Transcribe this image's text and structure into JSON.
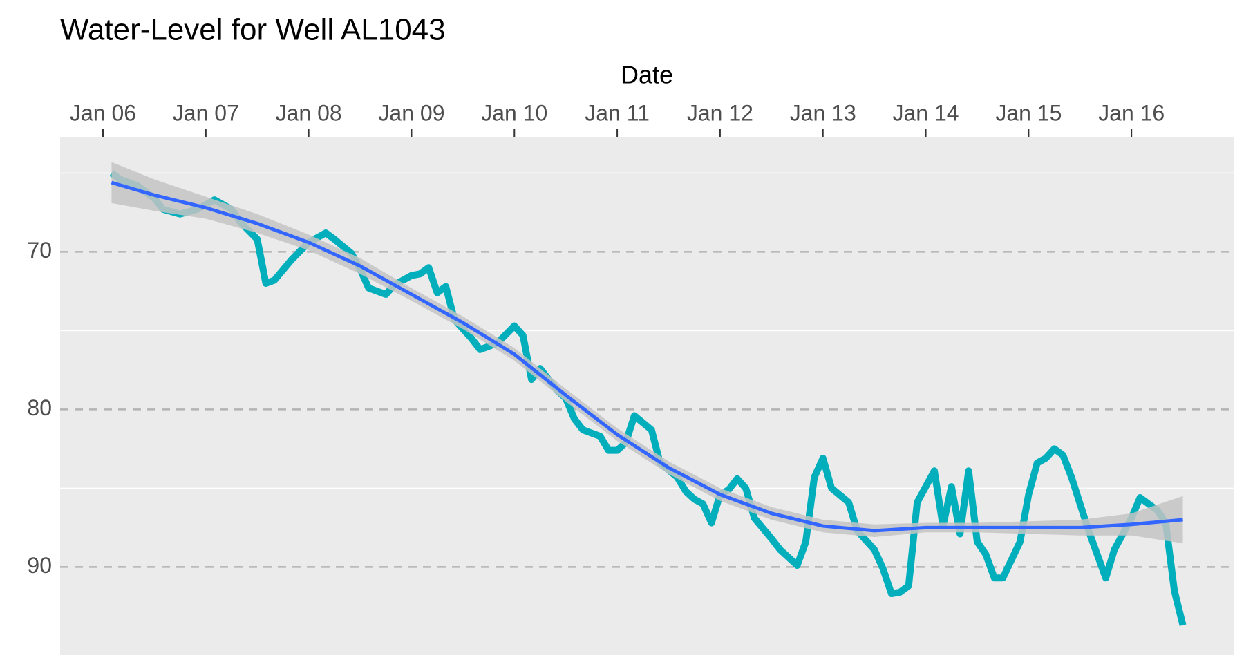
{
  "chart_data": {
    "type": "line",
    "title": "Water-Level for Well AL1043",
    "x_label": "Date",
    "x_axis_position": "top",
    "xlim": [
      "2005-08",
      "2017-01"
    ],
    "xticks": [
      {
        "value": "2006-01",
        "label": "Jan 06"
      },
      {
        "value": "2007-01",
        "label": "Jan 07"
      },
      {
        "value": "2008-01",
        "label": "Jan 08"
      },
      {
        "value": "2009-01",
        "label": "Jan 09"
      },
      {
        "value": "2010-01",
        "label": "Jan 10"
      },
      {
        "value": "2011-01",
        "label": "Jan 11"
      },
      {
        "value": "2012-01",
        "label": "Jan 12"
      },
      {
        "value": "2013-01",
        "label": "Jan 13"
      },
      {
        "value": "2014-01",
        "label": "Jan 14"
      },
      {
        "value": "2015-01",
        "label": "Jan 15"
      },
      {
        "value": "2016-01",
        "label": "Jan 16"
      }
    ],
    "ylim": [
      62.7,
      95.6
    ],
    "y_reversed": true,
    "yticks": [
      70,
      80,
      90
    ],
    "y_minor_grid": [
      65,
      75,
      85
    ],
    "grid": true,
    "panel_color": "#ebebeb",
    "x": [
      "2006-02",
      "2006-03",
      "2006-05",
      "2006-07",
      "2006-08",
      "2006-10",
      "2006-12",
      "2007-02",
      "2007-04",
      "2007-05",
      "2007-07",
      "2007-08",
      "2007-09",
      "2007-11",
      "2008-01",
      "2008-03",
      "2008-04",
      "2008-06",
      "2008-07",
      "2008-08",
      "2008-10",
      "2008-11",
      "2009-01",
      "2009-02",
      "2009-03",
      "2009-04",
      "2009-05",
      "2009-06",
      "2009-08",
      "2009-09",
      "2009-11",
      "2010-01",
      "2010-02",
      "2010-03",
      "2010-04",
      "2010-05",
      "2010-06",
      "2010-07",
      "2010-08",
      "2010-09",
      "2010-11",
      "2010-12",
      "2011-01",
      "2011-02",
      "2011-03",
      "2011-05",
      "2011-06",
      "2011-08",
      "2011-09",
      "2011-10",
      "2011-11",
      "2011-12",
      "2012-01",
      "2012-02",
      "2012-03",
      "2012-04",
      "2012-05",
      "2012-07",
      "2012-08",
      "2012-10",
      "2012-11",
      "2012-12",
      "2013-01",
      "2013-02",
      "2013-04",
      "2013-05",
      "2013-07",
      "2013-08",
      "2013-09",
      "2013-10",
      "2013-11",
      "2013-12",
      "2014-02",
      "2014-03",
      "2014-04",
      "2014-05",
      "2014-06",
      "2014-07",
      "2014-08",
      "2014-09",
      "2014-10",
      "2014-12",
      "2015-01",
      "2015-02",
      "2015-03",
      "2015-04",
      "2015-05",
      "2015-06",
      "2015-07",
      "2015-08",
      "2015-10",
      "2015-11",
      "2016-01",
      "2016-02",
      "2016-04",
      "2016-05",
      "2016-06",
      "2016-07"
    ],
    "series": [
      {
        "color": "#00afbb",
        "values": [
          65.0,
          65.4,
          65.8,
          66.6,
          67.3,
          67.6,
          67.3,
          66.7,
          67.3,
          68.1,
          69.2,
          72.0,
          71.8,
          70.5,
          69.4,
          68.8,
          69.2,
          70.1,
          71.1,
          72.3,
          72.7,
          72.1,
          71.5,
          71.4,
          71.0,
          72.6,
          72.2,
          74.3,
          75.5,
          76.2,
          75.8,
          74.7,
          75.3,
          78.1,
          77.4,
          78.1,
          78.8,
          79.3,
          80.6,
          81.3,
          81.7,
          82.6,
          82.6,
          82.1,
          80.4,
          81.3,
          83.4,
          84.3,
          85.2,
          85.7,
          86.0,
          87.2,
          85.4,
          85.1,
          84.4,
          85.0,
          86.9,
          88.2,
          88.9,
          89.9,
          88.4,
          84.3,
          83.1,
          85.0,
          85.9,
          87.7,
          88.9,
          90.1,
          91.7,
          91.6,
          91.2,
          85.9,
          83.9,
          87.4,
          84.9,
          87.9,
          83.9,
          88.4,
          89.2,
          90.7,
          90.7,
          88.4,
          85.4,
          83.4,
          83.1,
          82.5,
          82.9,
          84.3,
          86.0,
          87.7,
          90.7,
          88.9,
          86.9,
          85.6,
          86.4,
          87.2,
          91.5,
          93.7
        ]
      },
      {
        "color": "#3366ff",
        "band_color": "#c4c4c4",
        "x": [
          "2006-02",
          "2006-07",
          "2007-01",
          "2007-07",
          "2008-01",
          "2008-07",
          "2009-01",
          "2009-07",
          "2010-01",
          "2010-07",
          "2011-01",
          "2011-07",
          "2012-01",
          "2012-07",
          "2013-01",
          "2013-07",
          "2014-01",
          "2014-07",
          "2015-01",
          "2015-07",
          "2016-01",
          "2016-07"
        ],
        "values": [
          65.6,
          66.4,
          67.2,
          68.2,
          69.4,
          70.9,
          72.7,
          74.5,
          76.5,
          79.1,
          81.6,
          83.7,
          85.4,
          86.6,
          87.4,
          87.7,
          87.5,
          87.5,
          87.5,
          87.5,
          87.3,
          87.0
        ],
        "lower": [
          64.3,
          65.4,
          66.5,
          67.6,
          68.9,
          70.4,
          72.3,
          74.1,
          76.1,
          78.7,
          81.2,
          83.3,
          85.0,
          86.2,
          87.0,
          87.3,
          87.2,
          87.2,
          87.1,
          87.0,
          86.6,
          85.5
        ],
        "upper": [
          66.9,
          67.4,
          67.9,
          68.8,
          69.9,
          71.4,
          73.1,
          74.9,
          76.9,
          79.5,
          82.0,
          84.1,
          85.8,
          87.0,
          87.8,
          88.1,
          87.8,
          87.8,
          87.9,
          88.0,
          88.0,
          88.5
        ]
      }
    ]
  }
}
